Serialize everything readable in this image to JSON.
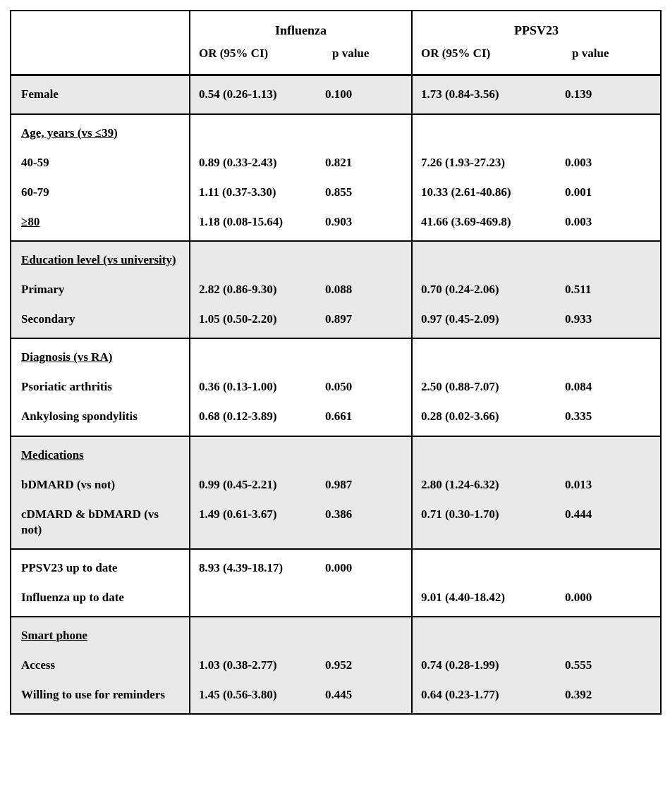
{
  "colors": {
    "row_shade": "#e8e8e8",
    "border": "#000000"
  },
  "header": {
    "group1": "Influenza",
    "group2": "PPSV23",
    "or_label": "OR (95% CI)",
    "p_label": "p value"
  },
  "sections": [
    {
      "rows": [
        {
          "label": "Female",
          "flu_or": "0.54 (0.26-1.13)",
          "flu_p": "0.100",
          "ppsv_or": "1.73 (0.84-3.56)",
          "ppsv_p": "0.139"
        }
      ]
    },
    {
      "rows": [
        {
          "label": "Age, years (vs ≤39)"
        },
        {
          "label": "40-59",
          "flu_or": "0.89 (0.33-2.43)",
          "flu_p": "0.821",
          "ppsv_or": "7.26 (1.93-27.23)",
          "ppsv_p": "0.003"
        },
        {
          "label": "60-79",
          "flu_or": "1.11 (0.37-3.30)",
          "flu_p": "0.855",
          "ppsv_or": "10.33 (2.61-40.86)",
          "ppsv_p": "0.001"
        },
        {
          "label": "≥80",
          "flu_or": "1.18 (0.08-15.64)",
          "flu_p": "0.903",
          "ppsv_or": "41.66 (3.69-469.8)",
          "ppsv_p": "0.003"
        }
      ]
    },
    {
      "rows": [
        {
          "label": "Education level (vs university)"
        },
        {
          "label": "Primary",
          "flu_or": "2.82 (0.86-9.30)",
          "flu_p": "0.088",
          "ppsv_or": "0.70 (0.24-2.06)",
          "ppsv_p": "0.511"
        },
        {
          "label": "Secondary",
          "flu_or": "1.05 (0.50-2.20)",
          "flu_p": "0.897",
          "ppsv_or": "0.97 (0.45-2.09)",
          "ppsv_p": "0.933"
        }
      ]
    },
    {
      "rows": [
        {
          "label": "Diagnosis (vs RA)"
        },
        {
          "label": "Psoriatic arthritis",
          "flu_or": "0.36 (0.13-1.00)",
          "flu_p": "0.050",
          "ppsv_or": "2.50 (0.88-7.07)",
          "ppsv_p": "0.084"
        },
        {
          "label": "Ankylosing spondylitis",
          "flu_or": "0.68 (0.12-3.89)",
          "flu_p": "0.661",
          "ppsv_or": "0.28 (0.02-3.66)",
          "ppsv_p": "0.335"
        }
      ]
    },
    {
      "rows": [
        {
          "label": "Medications"
        },
        {
          "label": "bDMARD (vs not)",
          "flu_or": "0.99 (0.45-2.21)",
          "flu_p": "0.987",
          "ppsv_or": "2.80 (1.24-6.32)",
          "ppsv_p": "0.013"
        },
        {
          "label": "cDMARD & bDMARD (vs not)",
          "flu_or": "1.49 (0.61-3.67)",
          "flu_p": "0.386",
          "ppsv_or": "0.71 (0.30-1.70)",
          "ppsv_p": "0.444"
        }
      ]
    },
    {
      "rows": [
        {
          "label": "PPSV23 up to date",
          "flu_or": "8.93 (4.39-18.17)",
          "flu_p": "0.000",
          "ppsv_or": "",
          "ppsv_p": ""
        },
        {
          "label": "Influenza up to date",
          "flu_or": "",
          "flu_p": "",
          "ppsv_or": "9.01 (4.40-18.42)",
          "ppsv_p": "0.000"
        }
      ]
    },
    {
      "rows": [
        {
          "label": "Smart phone"
        },
        {
          "label": "Access",
          "flu_or": "1.03 (0.38-2.77)",
          "flu_p": "0.952",
          "ppsv_or": "0.74 (0.28-1.99)",
          "ppsv_p": "0.555"
        },
        {
          "label": "Willing to use for reminders",
          "flu_or": "1.45 (0.56-3.80)",
          "flu_p": "0.445",
          "ppsv_or": "0.64 (0.23-1.77)",
          "ppsv_p": "0.392"
        }
      ]
    }
  ]
}
